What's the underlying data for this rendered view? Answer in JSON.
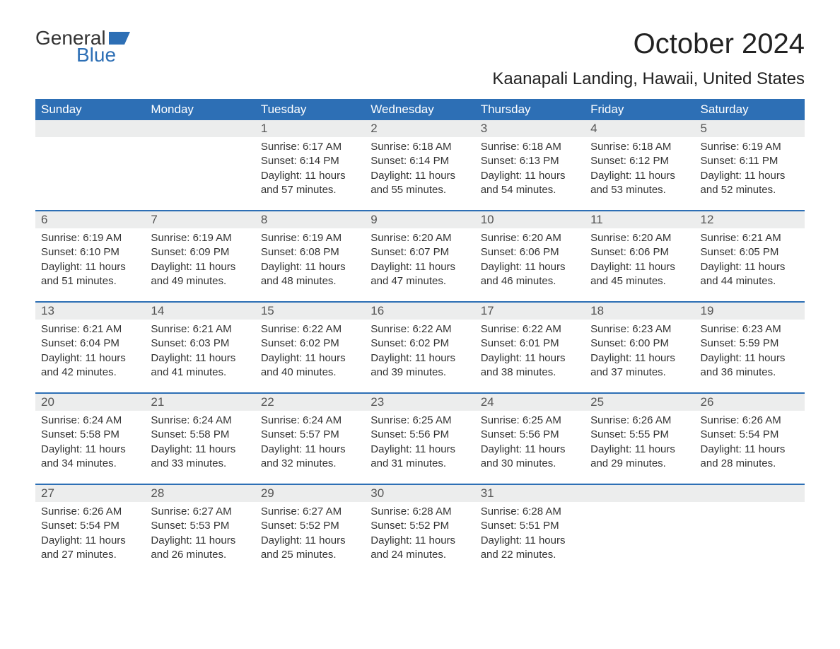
{
  "brand": {
    "part1": "General",
    "part2": "Blue",
    "flag_color": "#2d6fb5",
    "text_dark": "#333333"
  },
  "title": "October 2024",
  "subtitle": "Kaanapali Landing, Hawaii, United States",
  "colors": {
    "header_bg": "#2d6fb5",
    "header_text": "#ffffff",
    "daynum_bg": "#eceded",
    "daynum_text": "#555555",
    "body_text": "#333333",
    "week_divider": "#2d6fb5",
    "page_bg": "#ffffff"
  },
  "day_headers": [
    "Sunday",
    "Monday",
    "Tuesday",
    "Wednesday",
    "Thursday",
    "Friday",
    "Saturday"
  ],
  "weeks": [
    [
      {
        "n": "",
        "sunrise": "",
        "sunset": "",
        "daylight": ""
      },
      {
        "n": "",
        "sunrise": "",
        "sunset": "",
        "daylight": ""
      },
      {
        "n": "1",
        "sunrise": "Sunrise: 6:17 AM",
        "sunset": "Sunset: 6:14 PM",
        "daylight": "Daylight: 11 hours and 57 minutes."
      },
      {
        "n": "2",
        "sunrise": "Sunrise: 6:18 AM",
        "sunset": "Sunset: 6:14 PM",
        "daylight": "Daylight: 11 hours and 55 minutes."
      },
      {
        "n": "3",
        "sunrise": "Sunrise: 6:18 AM",
        "sunset": "Sunset: 6:13 PM",
        "daylight": "Daylight: 11 hours and 54 minutes."
      },
      {
        "n": "4",
        "sunrise": "Sunrise: 6:18 AM",
        "sunset": "Sunset: 6:12 PM",
        "daylight": "Daylight: 11 hours and 53 minutes."
      },
      {
        "n": "5",
        "sunrise": "Sunrise: 6:19 AM",
        "sunset": "Sunset: 6:11 PM",
        "daylight": "Daylight: 11 hours and 52 minutes."
      }
    ],
    [
      {
        "n": "6",
        "sunrise": "Sunrise: 6:19 AM",
        "sunset": "Sunset: 6:10 PM",
        "daylight": "Daylight: 11 hours and 51 minutes."
      },
      {
        "n": "7",
        "sunrise": "Sunrise: 6:19 AM",
        "sunset": "Sunset: 6:09 PM",
        "daylight": "Daylight: 11 hours and 49 minutes."
      },
      {
        "n": "8",
        "sunrise": "Sunrise: 6:19 AM",
        "sunset": "Sunset: 6:08 PM",
        "daylight": "Daylight: 11 hours and 48 minutes."
      },
      {
        "n": "9",
        "sunrise": "Sunrise: 6:20 AM",
        "sunset": "Sunset: 6:07 PM",
        "daylight": "Daylight: 11 hours and 47 minutes."
      },
      {
        "n": "10",
        "sunrise": "Sunrise: 6:20 AM",
        "sunset": "Sunset: 6:06 PM",
        "daylight": "Daylight: 11 hours and 46 minutes."
      },
      {
        "n": "11",
        "sunrise": "Sunrise: 6:20 AM",
        "sunset": "Sunset: 6:06 PM",
        "daylight": "Daylight: 11 hours and 45 minutes."
      },
      {
        "n": "12",
        "sunrise": "Sunrise: 6:21 AM",
        "sunset": "Sunset: 6:05 PM",
        "daylight": "Daylight: 11 hours and 44 minutes."
      }
    ],
    [
      {
        "n": "13",
        "sunrise": "Sunrise: 6:21 AM",
        "sunset": "Sunset: 6:04 PM",
        "daylight": "Daylight: 11 hours and 42 minutes."
      },
      {
        "n": "14",
        "sunrise": "Sunrise: 6:21 AM",
        "sunset": "Sunset: 6:03 PM",
        "daylight": "Daylight: 11 hours and 41 minutes."
      },
      {
        "n": "15",
        "sunrise": "Sunrise: 6:22 AM",
        "sunset": "Sunset: 6:02 PM",
        "daylight": "Daylight: 11 hours and 40 minutes."
      },
      {
        "n": "16",
        "sunrise": "Sunrise: 6:22 AM",
        "sunset": "Sunset: 6:02 PM",
        "daylight": "Daylight: 11 hours and 39 minutes."
      },
      {
        "n": "17",
        "sunrise": "Sunrise: 6:22 AM",
        "sunset": "Sunset: 6:01 PM",
        "daylight": "Daylight: 11 hours and 38 minutes."
      },
      {
        "n": "18",
        "sunrise": "Sunrise: 6:23 AM",
        "sunset": "Sunset: 6:00 PM",
        "daylight": "Daylight: 11 hours and 37 minutes."
      },
      {
        "n": "19",
        "sunrise": "Sunrise: 6:23 AM",
        "sunset": "Sunset: 5:59 PM",
        "daylight": "Daylight: 11 hours and 36 minutes."
      }
    ],
    [
      {
        "n": "20",
        "sunrise": "Sunrise: 6:24 AM",
        "sunset": "Sunset: 5:58 PM",
        "daylight": "Daylight: 11 hours and 34 minutes."
      },
      {
        "n": "21",
        "sunrise": "Sunrise: 6:24 AM",
        "sunset": "Sunset: 5:58 PM",
        "daylight": "Daylight: 11 hours and 33 minutes."
      },
      {
        "n": "22",
        "sunrise": "Sunrise: 6:24 AM",
        "sunset": "Sunset: 5:57 PM",
        "daylight": "Daylight: 11 hours and 32 minutes."
      },
      {
        "n": "23",
        "sunrise": "Sunrise: 6:25 AM",
        "sunset": "Sunset: 5:56 PM",
        "daylight": "Daylight: 11 hours and 31 minutes."
      },
      {
        "n": "24",
        "sunrise": "Sunrise: 6:25 AM",
        "sunset": "Sunset: 5:56 PM",
        "daylight": "Daylight: 11 hours and 30 minutes."
      },
      {
        "n": "25",
        "sunrise": "Sunrise: 6:26 AM",
        "sunset": "Sunset: 5:55 PM",
        "daylight": "Daylight: 11 hours and 29 minutes."
      },
      {
        "n": "26",
        "sunrise": "Sunrise: 6:26 AM",
        "sunset": "Sunset: 5:54 PM",
        "daylight": "Daylight: 11 hours and 28 minutes."
      }
    ],
    [
      {
        "n": "27",
        "sunrise": "Sunrise: 6:26 AM",
        "sunset": "Sunset: 5:54 PM",
        "daylight": "Daylight: 11 hours and 27 minutes."
      },
      {
        "n": "28",
        "sunrise": "Sunrise: 6:27 AM",
        "sunset": "Sunset: 5:53 PM",
        "daylight": "Daylight: 11 hours and 26 minutes."
      },
      {
        "n": "29",
        "sunrise": "Sunrise: 6:27 AM",
        "sunset": "Sunset: 5:52 PM",
        "daylight": "Daylight: 11 hours and 25 minutes."
      },
      {
        "n": "30",
        "sunrise": "Sunrise: 6:28 AM",
        "sunset": "Sunset: 5:52 PM",
        "daylight": "Daylight: 11 hours and 24 minutes."
      },
      {
        "n": "31",
        "sunrise": "Sunrise: 6:28 AM",
        "sunset": "Sunset: 5:51 PM",
        "daylight": "Daylight: 11 hours and 22 minutes."
      },
      {
        "n": "",
        "sunrise": "",
        "sunset": "",
        "daylight": ""
      },
      {
        "n": "",
        "sunrise": "",
        "sunset": "",
        "daylight": ""
      }
    ]
  ]
}
